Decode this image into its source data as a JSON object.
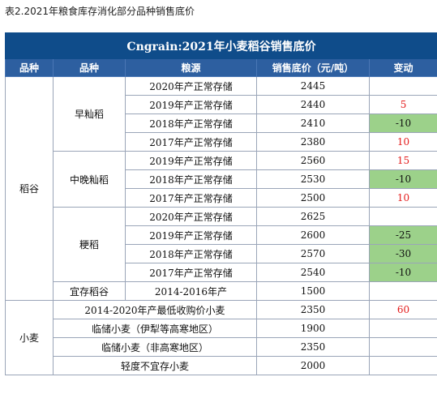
{
  "caption": "表2.2021年粮食库存消化部分品种销售底价",
  "table": {
    "title": "Cngrain:2021年小麦稻谷销售底价",
    "headers": [
      "品种",
      "品种",
      "粮源",
      "销售底价（元/吨）",
      "变动"
    ],
    "rice_label": "稻谷",
    "wheat_label": "小麦",
    "groups": {
      "early": "早籼稻",
      "midlate": "中晚籼稻",
      "japonica": "粳稻",
      "unsuitable_rice": "宜存稻谷"
    },
    "rows": [
      {
        "source": "2020年产正常存储",
        "price": "2445",
        "change": ""
      },
      {
        "source": "2019年产正常存储",
        "price": "2440",
        "change": "5"
      },
      {
        "source": "2018年产正常存储",
        "price": "2410",
        "change": "-10"
      },
      {
        "source": "2017年产正常存储",
        "price": "2380",
        "change": "10"
      },
      {
        "source": "2019年产正常存储",
        "price": "2560",
        "change": "15"
      },
      {
        "source": "2018年产正常存储",
        "price": "2530",
        "change": "-10"
      },
      {
        "source": "2017年产正常存储",
        "price": "2500",
        "change": "10"
      },
      {
        "source": "2020年产正常存储",
        "price": "2625",
        "change": ""
      },
      {
        "source": "2019年产正常存储",
        "price": "2600",
        "change": "-25"
      },
      {
        "source": "2018年产正常存储",
        "price": "2570",
        "change": "-30"
      },
      {
        "source": "2017年产正常存储",
        "price": "2540",
        "change": "-10"
      },
      {
        "source": "2014-2016年产",
        "price": "1500",
        "change": ""
      },
      {
        "source": "2014-2020年产最低收购价小麦",
        "price": "2350",
        "change": "60"
      },
      {
        "source": "临储小麦（伊犁等高寒地区）",
        "price": "1900",
        "change": ""
      },
      {
        "source": "临储小麦（非高寒地区）",
        "price": "2350",
        "change": ""
      },
      {
        "source": "轻度不宜存小麦",
        "price": "2000",
        "change": ""
      }
    ]
  }
}
